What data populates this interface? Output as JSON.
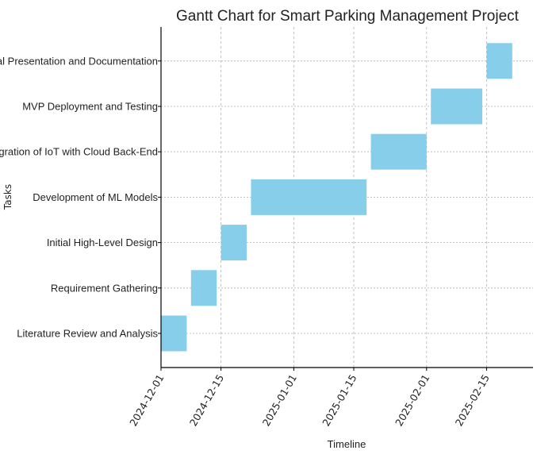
{
  "chart_data": {
    "type": "gantt",
    "title": "Gantt Chart for Smart Parking Management Project",
    "xlabel": "Timeline",
    "ylabel": "Tasks",
    "x_axis": {
      "type": "date",
      "range": [
        "2024-12-01",
        "2025-02-23"
      ],
      "tick_labels": [
        "2024-12-01",
        "2024-12-15",
        "2025-01-01",
        "2025-01-15",
        "2025-02-01",
        "2025-02-15"
      ]
    },
    "tasks": [
      {
        "name": "Literature Review and Analysis",
        "start": "2024-12-01",
        "end": "2024-12-07"
      },
      {
        "name": "Requirement Gathering",
        "start": "2024-12-08",
        "end": "2024-12-14"
      },
      {
        "name": "Initial High-Level Design",
        "start": "2024-12-15",
        "end": "2024-12-21"
      },
      {
        "name": "Development of ML Models",
        "start": "2024-12-22",
        "end": "2025-01-18"
      },
      {
        "name": "Integration of IoT with Cloud Back-End",
        "start": "2025-01-19",
        "end": "2025-02-01"
      },
      {
        "name": "MVP Deployment and Testing",
        "start": "2025-02-02",
        "end": "2025-02-14"
      },
      {
        "name": "Final Presentation and Documentation",
        "start": "2025-02-15",
        "end": "2025-02-21"
      }
    ],
    "grid": true,
    "bar_color": "#87ceeb",
    "grid_color": "#b0b0b0",
    "axis_color": "#000000"
  }
}
